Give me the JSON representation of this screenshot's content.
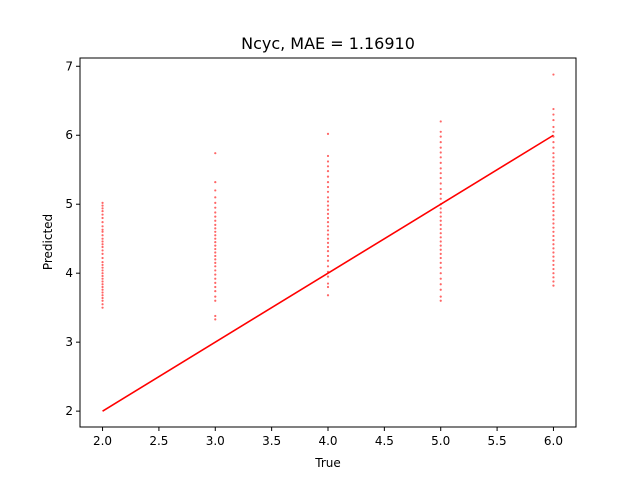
{
  "chart_data": {
    "type": "scatter",
    "title": "Ncyc, MAE = 1.16910",
    "xlabel": "True",
    "ylabel": "Predicted",
    "xlim": [
      1.8,
      6.2
    ],
    "ylim": [
      1.77,
      7.12
    ],
    "x_ticks": [
      "2.0",
      "2.5",
      "3.0",
      "3.5",
      "4.0",
      "4.5",
      "5.0",
      "5.5",
      "6.0"
    ],
    "y_ticks": [
      "2",
      "3",
      "4",
      "5",
      "6",
      "7"
    ],
    "grid": false,
    "legend": "none",
    "series": [
      {
        "kind": "scatter",
        "color": "#ff0000",
        "points": [
          [
            2,
            5.02
          ],
          [
            2,
            4.98
          ],
          [
            2,
            4.94
          ],
          [
            2,
            4.9
          ],
          [
            2,
            4.85
          ],
          [
            2,
            4.8
          ],
          [
            2,
            4.74
          ],
          [
            2,
            4.68
          ],
          [
            2,
            4.63
          ],
          [
            2,
            4.6
          ],
          [
            2,
            4.55
          ],
          [
            2,
            4.5
          ],
          [
            2,
            4.46
          ],
          [
            2,
            4.42
          ],
          [
            2,
            4.38
          ],
          [
            2,
            4.33
          ],
          [
            2,
            4.28
          ],
          [
            2,
            4.22
          ],
          [
            2,
            4.16
          ],
          [
            2,
            4.12
          ],
          [
            2,
            4.08
          ],
          [
            2,
            4.04
          ],
          [
            2,
            4.0
          ],
          [
            2,
            3.96
          ],
          [
            2,
            3.92
          ],
          [
            2,
            3.88
          ],
          [
            2,
            3.84
          ],
          [
            2,
            3.8
          ],
          [
            2,
            3.76
          ],
          [
            2,
            3.72
          ],
          [
            2,
            3.68
          ],
          [
            2,
            3.64
          ],
          [
            2,
            3.6
          ],
          [
            2,
            3.55
          ],
          [
            2,
            3.5
          ],
          [
            3,
            5.74
          ],
          [
            3,
            5.32
          ],
          [
            3,
            5.2
          ],
          [
            3,
            5.1
          ],
          [
            3,
            5.02
          ],
          [
            3,
            4.95
          ],
          [
            3,
            4.88
          ],
          [
            3,
            4.82
          ],
          [
            3,
            4.76
          ],
          [
            3,
            4.7
          ],
          [
            3,
            4.65
          ],
          [
            3,
            4.6
          ],
          [
            3,
            4.55
          ],
          [
            3,
            4.5
          ],
          [
            3,
            4.45
          ],
          [
            3,
            4.4
          ],
          [
            3,
            4.35
          ],
          [
            3,
            4.3
          ],
          [
            3,
            4.25
          ],
          [
            3,
            4.2
          ],
          [
            3,
            4.15
          ],
          [
            3,
            4.1
          ],
          [
            3,
            4.04
          ],
          [
            3,
            3.98
          ],
          [
            3,
            3.92
          ],
          [
            3,
            3.86
          ],
          [
            3,
            3.8
          ],
          [
            3,
            3.74
          ],
          [
            3,
            3.66
          ],
          [
            3,
            3.6
          ],
          [
            3,
            3.38
          ],
          [
            3,
            3.33
          ],
          [
            4,
            6.02
          ],
          [
            4,
            5.7
          ],
          [
            4,
            5.62
          ],
          [
            4,
            5.55
          ],
          [
            4,
            5.48
          ],
          [
            4,
            5.4
          ],
          [
            4,
            5.32
          ],
          [
            4,
            5.25
          ],
          [
            4,
            5.18
          ],
          [
            4,
            5.1
          ],
          [
            4,
            5.04
          ],
          [
            4,
            4.98
          ],
          [
            4,
            4.92
          ],
          [
            4,
            4.86
          ],
          [
            4,
            4.8
          ],
          [
            4,
            4.74
          ],
          [
            4,
            4.68
          ],
          [
            4,
            4.62
          ],
          [
            4,
            4.56
          ],
          [
            4,
            4.5
          ],
          [
            4,
            4.44
          ],
          [
            4,
            4.38
          ],
          [
            4,
            4.32
          ],
          [
            4,
            4.25
          ],
          [
            4,
            4.18
          ],
          [
            4,
            4.1
          ],
          [
            4,
            4.02
          ],
          [
            4,
            3.95
          ],
          [
            4,
            3.85
          ],
          [
            4,
            3.8
          ],
          [
            4,
            3.68
          ],
          [
            5,
            6.2
          ],
          [
            5,
            6.05
          ],
          [
            5,
            5.98
          ],
          [
            5,
            5.9
          ],
          [
            5,
            5.82
          ],
          [
            5,
            5.75
          ],
          [
            5,
            5.68
          ],
          [
            5,
            5.6
          ],
          [
            5,
            5.52
          ],
          [
            5,
            5.45
          ],
          [
            5,
            5.38
          ],
          [
            5,
            5.3
          ],
          [
            5,
            5.22
          ],
          [
            5,
            5.15
          ],
          [
            5,
            5.08
          ],
          [
            5,
            5.0
          ],
          [
            5,
            4.94
          ],
          [
            5,
            4.88
          ],
          [
            5,
            4.82
          ],
          [
            5,
            4.76
          ],
          [
            5,
            4.7
          ],
          [
            5,
            4.64
          ],
          [
            5,
            4.58
          ],
          [
            5,
            4.52
          ],
          [
            5,
            4.46
          ],
          [
            5,
            4.4
          ],
          [
            5,
            4.34
          ],
          [
            5,
            4.28
          ],
          [
            5,
            4.22
          ],
          [
            5,
            4.15
          ],
          [
            5,
            4.08
          ],
          [
            5,
            4.0
          ],
          [
            5,
            3.92
          ],
          [
            5,
            3.84
          ],
          [
            5,
            3.76
          ],
          [
            5,
            3.66
          ],
          [
            5,
            3.6
          ],
          [
            6,
            6.88
          ],
          [
            6,
            6.38
          ],
          [
            6,
            6.3
          ],
          [
            6,
            6.22
          ],
          [
            6,
            6.12
          ],
          [
            6,
            6.05
          ],
          [
            6,
            5.98
          ],
          [
            6,
            5.9
          ],
          [
            6,
            5.82
          ],
          [
            6,
            5.74
          ],
          [
            6,
            5.68
          ],
          [
            6,
            5.62
          ],
          [
            6,
            5.56
          ],
          [
            6,
            5.5
          ],
          [
            6,
            5.44
          ],
          [
            6,
            5.38
          ],
          [
            6,
            5.32
          ],
          [
            6,
            5.26
          ],
          [
            6,
            5.2
          ],
          [
            6,
            5.14
          ],
          [
            6,
            5.08
          ],
          [
            6,
            5.02
          ],
          [
            6,
            4.96
          ],
          [
            6,
            4.9
          ],
          [
            6,
            4.84
          ],
          [
            6,
            4.78
          ],
          [
            6,
            4.72
          ],
          [
            6,
            4.66
          ],
          [
            6,
            4.6
          ],
          [
            6,
            4.54
          ],
          [
            6,
            4.48
          ],
          [
            6,
            4.42
          ],
          [
            6,
            4.36
          ],
          [
            6,
            4.3
          ],
          [
            6,
            4.24
          ],
          [
            6,
            4.18
          ],
          [
            6,
            4.12
          ],
          [
            6,
            4.06
          ],
          [
            6,
            4.0
          ],
          [
            6,
            3.94
          ],
          [
            6,
            3.88
          ],
          [
            6,
            3.82
          ]
        ]
      },
      {
        "kind": "line",
        "color": "#ff0000",
        "x": [
          2,
          6
        ],
        "y": [
          2,
          6
        ]
      }
    ]
  }
}
